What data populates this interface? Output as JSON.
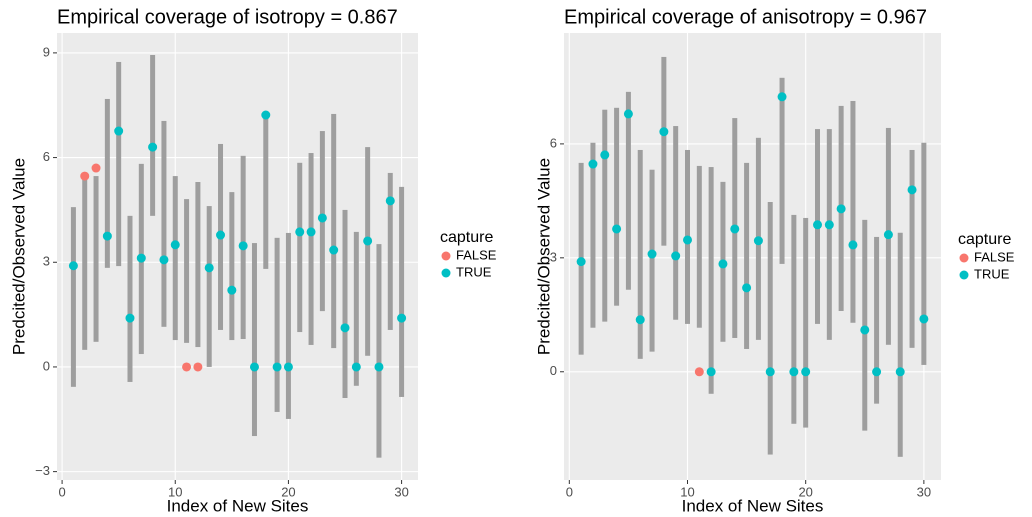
{
  "chart_data": [
    {
      "type": "errorbar",
      "title": "Empirical coverage of isotropy = 0.867",
      "x_label": "Index of New Sites",
      "y_label": "Predcited/Observed Value",
      "xlim": [
        -0.45,
        31.45
      ],
      "ylim": [
        -3.24,
        9.57
      ],
      "xticks": [
        0,
        10,
        20,
        30
      ],
      "yticks": [
        {
          "value": -3,
          "label": "−3"
        },
        0,
        3,
        6,
        9
      ],
      "grid": true,
      "legend_title": "capture",
      "intervals": {
        "color": "#9e9e9e",
        "x": [
          1,
          2,
          3,
          4,
          5,
          6,
          7,
          8,
          9,
          10,
          11,
          12,
          13,
          14,
          15,
          16,
          17,
          18,
          19,
          20,
          21,
          22,
          23,
          24,
          25,
          26,
          27,
          28,
          29,
          30
        ],
        "lower": [
          -0.57,
          0.49,
          0.72,
          2.84,
          2.89,
          -0.43,
          0.37,
          4.33,
          1.15,
          0.77,
          0.69,
          0.57,
          0.0,
          1.06,
          0.77,
          0.8,
          -1.98,
          2.81,
          -1.29,
          -1.49,
          1.0,
          0.63,
          1.6,
          0.54,
          -0.89,
          -0.54,
          0.32,
          -2.6,
          1.06,
          -0.86
        ],
        "upper": [
          4.58,
          5.4,
          5.47,
          7.68,
          8.74,
          4.33,
          5.82,
          8.94,
          7.05,
          5.47,
          4.81,
          5.3,
          4.61,
          6.39,
          5.01,
          6.05,
          3.55,
          7.3,
          3.7,
          3.84,
          5.85,
          6.13,
          6.76,
          7.25,
          4.5,
          3.87,
          6.3,
          3.52,
          5.56,
          5.16
        ]
      },
      "series": [
        {
          "name": "FALSE",
          "color": "#F8766D",
          "x": [
            2,
            3,
            11,
            12
          ],
          "values": [
            5.47,
            5.7,
            0,
            0
          ]
        },
        {
          "name": "TRUE",
          "color": "#00BFC4",
          "x": [
            1,
            4,
            5,
            6,
            7,
            8,
            9,
            10,
            13,
            14,
            15,
            16,
            17,
            18,
            19,
            20,
            21,
            22,
            23,
            24,
            25,
            26,
            27,
            28,
            29,
            30
          ],
          "values": [
            2.9,
            3.75,
            6.76,
            1.4,
            3.12,
            6.3,
            3.07,
            3.5,
            2.84,
            3.78,
            2.2,
            3.47,
            0,
            7.22,
            0,
            0,
            3.87,
            3.87,
            4.27,
            3.35,
            1.12,
            0,
            3.61,
            0,
            4.76,
            1.4
          ]
        }
      ]
    },
    {
      "type": "errorbar",
      "title": "Empirical coverage of anisotropy = 0.967",
      "x_label": "Index of New Sites",
      "y_label": "Predcited/Observed Value",
      "xlim": [
        -0.45,
        31.45
      ],
      "ylim": [
        -2.85,
        8.92
      ],
      "xticks": [
        0,
        10,
        20,
        30
      ],
      "yticks": [
        0,
        3,
        6
      ],
      "grid": true,
      "legend_title": "capture",
      "intervals": {
        "color": "#9e9e9e",
        "x": [
          1,
          2,
          3,
          4,
          5,
          6,
          7,
          8,
          9,
          10,
          11,
          12,
          13,
          14,
          15,
          16,
          17,
          18,
          19,
          20,
          21,
          22,
          23,
          24,
          25,
          26,
          27,
          28,
          29,
          30
        ],
        "lower": [
          0.45,
          1.16,
          1.32,
          1.74,
          2.16,
          0.34,
          0.53,
          3.32,
          1.37,
          1.26,
          1.16,
          -0.58,
          0.79,
          0.89,
          0.6,
          0.84,
          -2.18,
          2.84,
          -1.37,
          -1.47,
          1.26,
          0.84,
          1.6,
          1.29,
          -1.55,
          -0.84,
          0.71,
          -2.24,
          0.63,
          0.18
        ],
        "upper": [
          5.5,
          6.03,
          6.9,
          6.95,
          7.37,
          5.84,
          5.32,
          8.29,
          6.47,
          5.84,
          5.42,
          5.39,
          5.0,
          6.68,
          5.5,
          6.16,
          4.47,
          7.74,
          4.13,
          4.05,
          6.39,
          6.39,
          7.0,
          7.13,
          4.0,
          3.55,
          6.42,
          3.66,
          5.84,
          6.03
        ]
      },
      "series": [
        {
          "name": "FALSE",
          "color": "#F8766D",
          "x": [
            11
          ],
          "values": [
            0
          ]
        },
        {
          "name": "TRUE",
          "color": "#00BFC4",
          "x": [
            1,
            2,
            3,
            4,
            5,
            6,
            7,
            8,
            9,
            10,
            12,
            13,
            14,
            15,
            16,
            17,
            18,
            19,
            20,
            21,
            22,
            23,
            24,
            25,
            26,
            27,
            28,
            29,
            30
          ],
          "values": [
            2.9,
            5.47,
            5.71,
            3.76,
            6.79,
            1.37,
            3.1,
            6.32,
            3.05,
            3.47,
            0,
            2.84,
            3.76,
            2.21,
            3.45,
            0,
            7.24,
            0,
            0,
            3.87,
            3.87,
            4.29,
            3.34,
            1.1,
            0,
            3.61,
            0,
            4.79,
            1.39
          ]
        }
      ]
    }
  ]
}
